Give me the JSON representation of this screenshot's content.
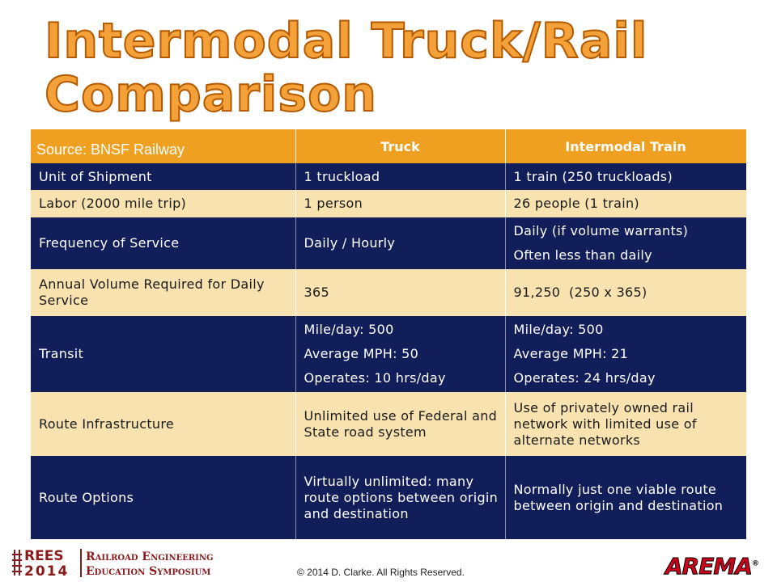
{
  "title": {
    "line1": "Intermodal Truck/Rail",
    "line2": "Comparison"
  },
  "table": {
    "source": "Source: BNSF Railway",
    "headers": [
      "Truck",
      "Intermodal Train"
    ],
    "rows": [
      {
        "label": "Unit of Shipment",
        "truck": [
          "1 truckload"
        ],
        "train": [
          "1 train (250 truckloads)"
        ]
      },
      {
        "label": "Labor (2000 mile trip)",
        "truck": [
          "1 person"
        ],
        "train": [
          "26 people (1 train)"
        ]
      },
      {
        "label": "Frequency of Service",
        "truck": [
          "Daily / Hourly"
        ],
        "train": [
          "Daily (if volume warrants)",
          "Often less than daily"
        ]
      },
      {
        "label": "Annual Volume Required for Daily Service",
        "truck": [
          "365"
        ],
        "train": [
          "91,250  (250 x 365)"
        ]
      },
      {
        "label": "Transit",
        "truck": [
          "Mile/day: 500",
          "Average MPH: 50",
          "Operates: 10 hrs/day"
        ],
        "train": [
          "Mile/day: 500",
          "Average MPH: 21",
          "Operates: 24 hrs/day"
        ]
      },
      {
        "label": "Route Infrastructure",
        "truck": [
          "Unlimited use of Federal and State road system"
        ],
        "train": [
          "Use of privately owned rail network with limited use of alternate networks"
        ]
      },
      {
        "label": "Route Options",
        "truck": [
          "Virtually unlimited: many route options between origin and destination"
        ],
        "train": [
          "Normally just one viable route between origin and destination"
        ]
      }
    ]
  },
  "footer": {
    "rees_line1": "REES",
    "rees_line2": "2014",
    "symposium_line1": "Railroad Engineering",
    "symposium_line2": "Education Symposium",
    "copyright": "© 2014 D. Clarke.   All Rights Reserved.",
    "arema": "AREMA",
    "arema_mark": "®"
  },
  "colors": {
    "header_orange": "#f0a020",
    "dark_row": "#111e5a",
    "light_row": "#f7e2b0",
    "title_orange": "#f5a13a",
    "logo_red": "#8b1a1a"
  }
}
